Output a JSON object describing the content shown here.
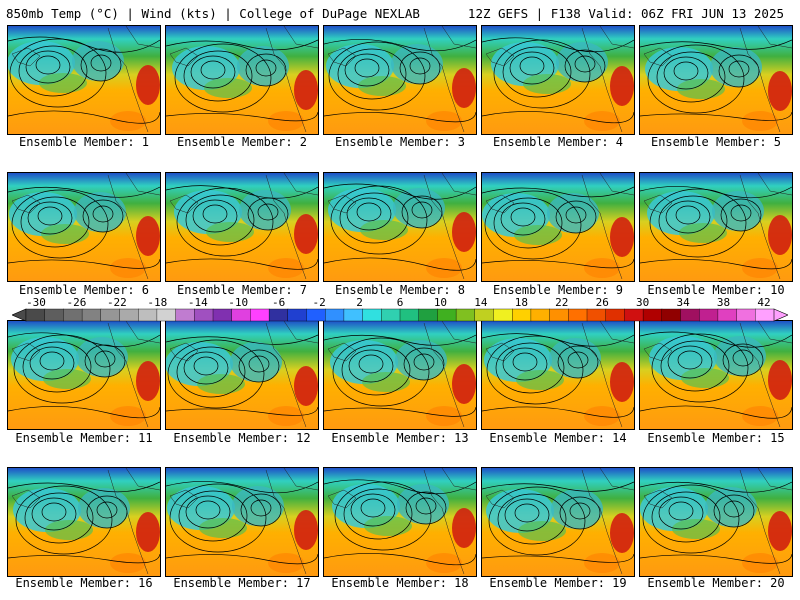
{
  "header": {
    "left_title": "850mb Temp (°C) | Wind (kts) | College of DuPage NEXLAB",
    "right_title": "12Z GEFS | F138 Valid: 06Z FRI JUN 13 2025"
  },
  "members": [
    {
      "label": "Ensemble Member: 1"
    },
    {
      "label": "Ensemble Member: 2"
    },
    {
      "label": "Ensemble Member: 3"
    },
    {
      "label": "Ensemble Member: 4"
    },
    {
      "label": "Ensemble Member: 5"
    },
    {
      "label": "Ensemble Member: 6"
    },
    {
      "label": "Ensemble Member: 7"
    },
    {
      "label": "Ensemble Member: 8"
    },
    {
      "label": "Ensemble Member: 9"
    },
    {
      "label": "Ensemble Member: 10"
    },
    {
      "label": "Ensemble Member: 11"
    },
    {
      "label": "Ensemble Member: 12"
    },
    {
      "label": "Ensemble Member: 13"
    },
    {
      "label": "Ensemble Member: 14"
    },
    {
      "label": "Ensemble Member: 15"
    },
    {
      "label": "Ensemble Member: 16"
    },
    {
      "label": "Ensemble Member: 17"
    },
    {
      "label": "Ensemble Member: 18"
    },
    {
      "label": "Ensemble Member: 19"
    },
    {
      "label": "Ensemble Member: 20"
    }
  ],
  "colorbar": {
    "labels": [
      "-30",
      "-26",
      "-22",
      "-18",
      "-14",
      "-10",
      "-6",
      "-2",
      "2",
      "6",
      "10",
      "14",
      "18",
      "22",
      "26",
      "30",
      "34",
      "38",
      "42"
    ],
    "colors": [
      "#4a4a4a",
      "#5e5e5e",
      "#707070",
      "#828282",
      "#969696",
      "#aaaaaa",
      "#bebebe",
      "#d2d2d2",
      "#c07cd0",
      "#a050c0",
      "#8030b0",
      "#e040e0",
      "#ff40ff",
      "#3030a0",
      "#2040d0",
      "#2060ff",
      "#3090ff",
      "#40c0ff",
      "#30e0e0",
      "#30d0b0",
      "#20c080",
      "#20a040",
      "#40b020",
      "#80c020",
      "#c0d020",
      "#f0f020",
      "#ffd000",
      "#ffb000",
      "#ff9000",
      "#ff7000",
      "#f05000",
      "#e03000",
      "#d01010",
      "#b00000",
      "#900000",
      "#a01060",
      "#c02090",
      "#e040c0",
      "#f070e0",
      "#ffa0ff"
    ]
  }
}
